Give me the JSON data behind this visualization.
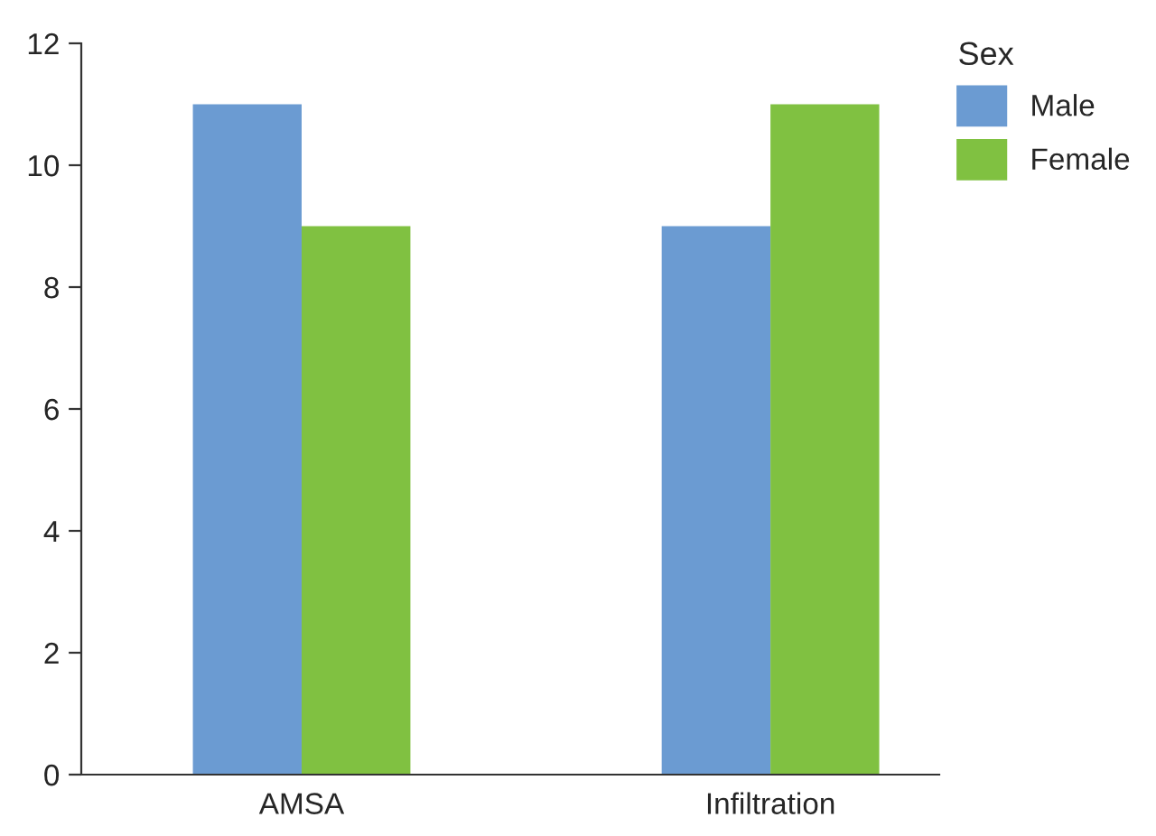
{
  "chart_data": {
    "type": "bar",
    "categories": [
      "AMSA",
      "Infiltration"
    ],
    "series": [
      {
        "name": "Male",
        "color": "#6b9bd2",
        "values": [
          11,
          9
        ]
      },
      {
        "name": "Female",
        "color": "#80c141",
        "values": [
          9,
          11
        ]
      }
    ],
    "ylim": [
      0,
      12
    ],
    "yticks": [
      0,
      2,
      4,
      6,
      8,
      10,
      12
    ],
    "legend": "top right",
    "legend_title": "Sex",
    "grid": false
  }
}
